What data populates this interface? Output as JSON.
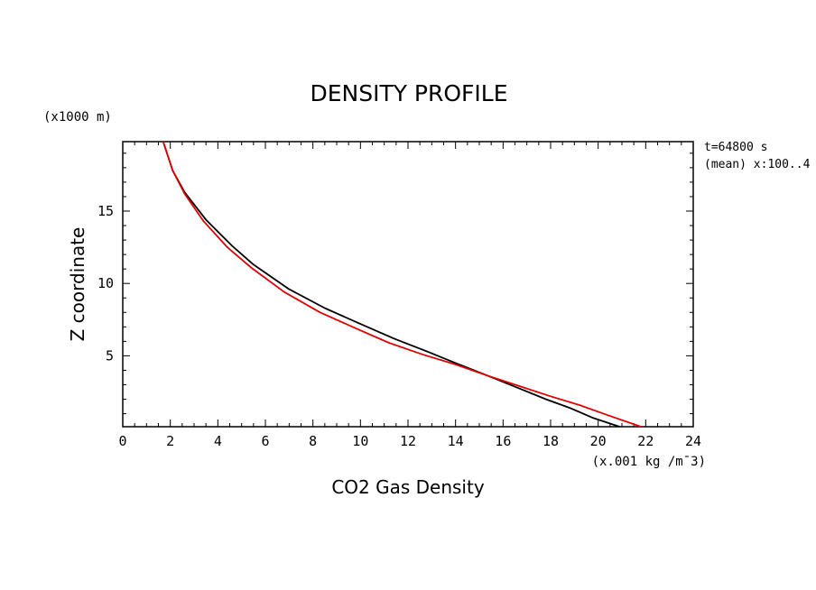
{
  "chart_data": {
    "type": "line",
    "title": "DENSITY PROFILE",
    "xlabel": "CO2 Gas Density",
    "ylabel": "Z coordinate",
    "x_unit": "(x.001 kg /m¯3)",
    "y_unit": "(x1000 m)",
    "info": [
      "t=64800 s",
      "(mean) x:100..4"
    ],
    "xlim": [
      0,
      24
    ],
    "ylim": [
      0.1,
      19.8
    ],
    "x_ticks": [
      0,
      2,
      4,
      6,
      8,
      10,
      12,
      14,
      16,
      18,
      20,
      22,
      24
    ],
    "y_ticks": [
      5,
      10,
      15
    ],
    "grid": false,
    "series": [
      {
        "color": "#000000",
        "x": [
          20.9,
          19.8,
          18.8,
          17.8,
          16.6,
          15.4,
          14.0,
          12.8,
          11.4,
          10.0,
          8.5,
          7.0,
          5.5,
          4.6,
          3.5,
          2.6,
          2.1,
          1.7
        ],
        "y": [
          0.1,
          0.7,
          1.4,
          2.0,
          2.8,
          3.6,
          4.5,
          5.3,
          6.2,
          7.2,
          8.3,
          9.6,
          11.3,
          12.6,
          14.4,
          16.3,
          17.8,
          19.8
        ]
      },
      {
        "color": "#e00000",
        "x": [
          21.8,
          20.4,
          19.2,
          18.0,
          16.7,
          15.4,
          14.0,
          12.6,
          11.2,
          9.8,
          8.3,
          6.8,
          5.4,
          4.4,
          3.4,
          2.6,
          2.1,
          1.7
        ],
        "y": [
          0.1,
          0.9,
          1.6,
          2.2,
          2.9,
          3.6,
          4.4,
          5.1,
          5.9,
          6.9,
          8.0,
          9.4,
          11.1,
          12.5,
          14.3,
          16.2,
          17.8,
          19.8
        ]
      }
    ]
  }
}
